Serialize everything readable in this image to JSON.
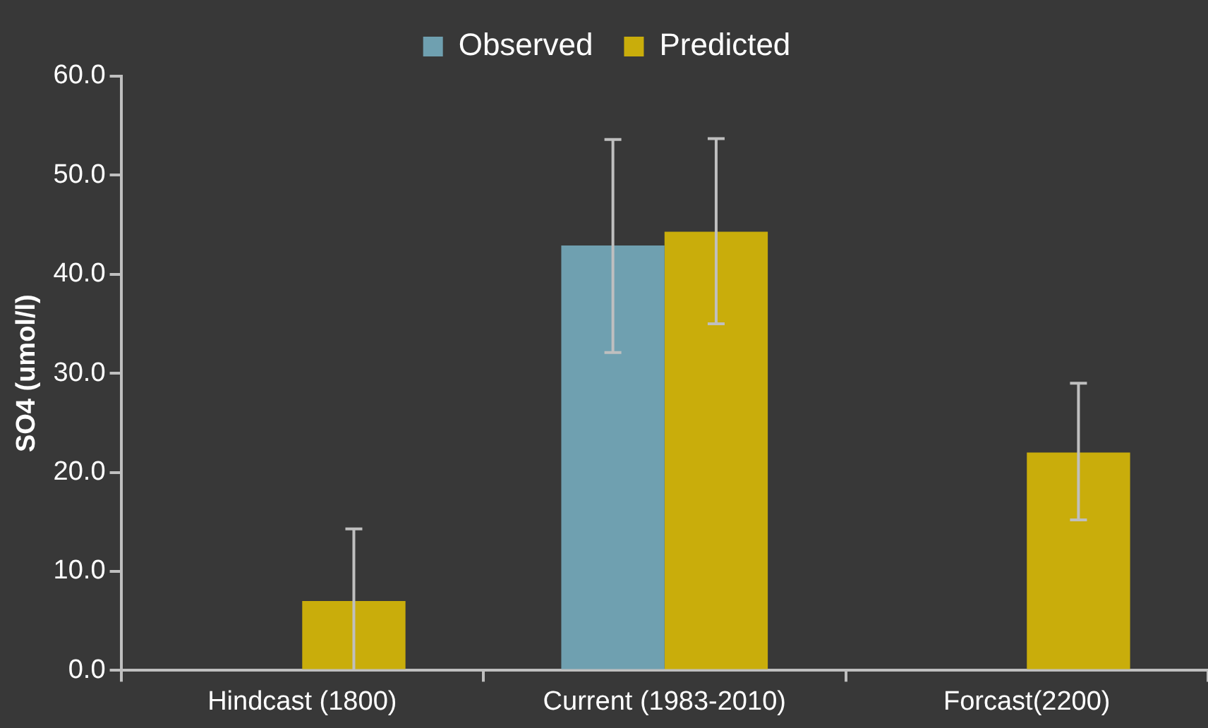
{
  "chart_data": {
    "type": "bar",
    "ylabel": "SO4 (umol/l)",
    "categories": [
      "Hindcast (1800)",
      "Current (1983-2010)",
      "Forcast(2200)"
    ],
    "series": [
      {
        "name": "Observed",
        "color": "#6fa0b0",
        "values": [
          null,
          42.9,
          null
        ],
        "errors": [
          null,
          [
            32.1,
            53.6
          ],
          null
        ]
      },
      {
        "name": "Predicted",
        "color": "#c9ad0b",
        "values": [
          7.0,
          44.3,
          22.0
        ],
        "errors": [
          [
            0,
            14.3
          ],
          [
            35.0,
            53.7
          ],
          [
            15.2,
            29.0
          ]
        ]
      }
    ],
    "ylim": [
      0,
      60
    ],
    "yticks": [
      {
        "value": 0,
        "label": "0.0"
      },
      {
        "value": 10,
        "label": "10.0"
      },
      {
        "value": 20,
        "label": "20.0"
      },
      {
        "value": 30,
        "label": "30.0"
      },
      {
        "value": 40,
        "label": "40.0"
      },
      {
        "value": 50,
        "label": "50.0"
      },
      {
        "value": 60,
        "label": "60.0"
      }
    ],
    "legend": "top"
  }
}
